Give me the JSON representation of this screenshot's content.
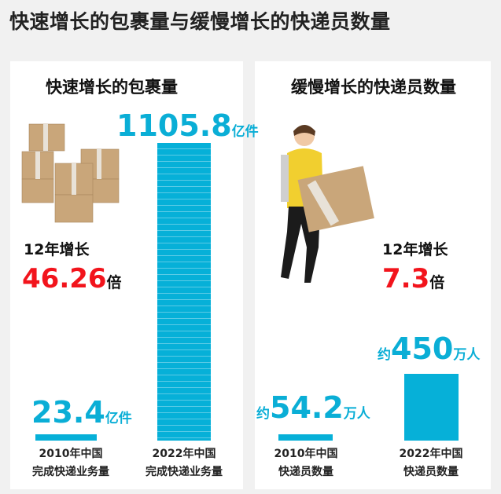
{
  "title": "快速增长的包裹量与缓慢增长的快递员数量",
  "chart_data": [
    {
      "type": "bar",
      "title": "快速增长的包裹量",
      "categories": [
        "2010年中国完成快递业务量",
        "2022年中国完成快递业务量"
      ],
      "category_lines": [
        [
          "2010年中国",
          "完成快递业务量"
        ],
        [
          "2022年中国",
          "完成快递业务量"
        ]
      ],
      "values": [
        23.4,
        1105.8
      ],
      "value_labels": [
        "23.4",
        "1105.8"
      ],
      "unit": "亿件",
      "prefix": "",
      "growth_label": "12年增长",
      "growth_value": "46.26",
      "growth_unit": "倍",
      "color": "#06b0d8"
    },
    {
      "type": "bar",
      "title": "缓慢增长的快递员数量",
      "categories": [
        "2010年中国快递员数量",
        "2022年中国快递员数量"
      ],
      "category_lines": [
        [
          "2010年中国",
          "快递员数量"
        ],
        [
          "2022年中国",
          "快递员数量"
        ]
      ],
      "values": [
        54.2,
        450
      ],
      "value_labels": [
        "54.2",
        "450"
      ],
      "unit": "万人",
      "prefix": "约",
      "growth_label": "12年增长",
      "growth_value": "7.3",
      "growth_unit": "倍",
      "color": "#06b0d8"
    }
  ]
}
